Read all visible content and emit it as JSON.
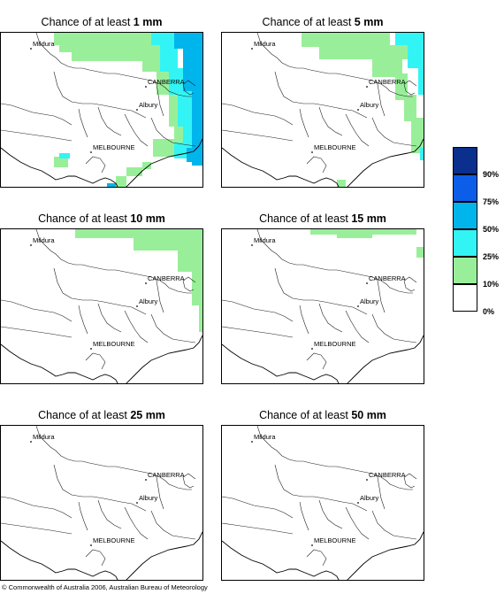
{
  "title_prefix": "Chance of at least",
  "panels": [
    {
      "amount": "1 mm"
    },
    {
      "amount": "5 mm"
    },
    {
      "amount": "10 mm"
    },
    {
      "amount": "15 mm"
    },
    {
      "amount": "25 mm"
    },
    {
      "amount": "50 mm"
    }
  ],
  "cities": {
    "mildura": "Mildura",
    "canberra": "CANBERRA",
    "albury": "Albury",
    "melbourne": "MELBOURNE"
  },
  "legend": {
    "labels": [
      "90%",
      "75%",
      "50%",
      "25%",
      "10%",
      "0%"
    ],
    "colors": [
      "#0a2f8c",
      "#0c5ee8",
      "#00b5ec",
      "#33f4f4",
      "#99ef99",
      "#ffffff"
    ]
  },
  "copyright": "© Commonwealth of Australia 2006, Australian Bureau of Meteorology"
}
